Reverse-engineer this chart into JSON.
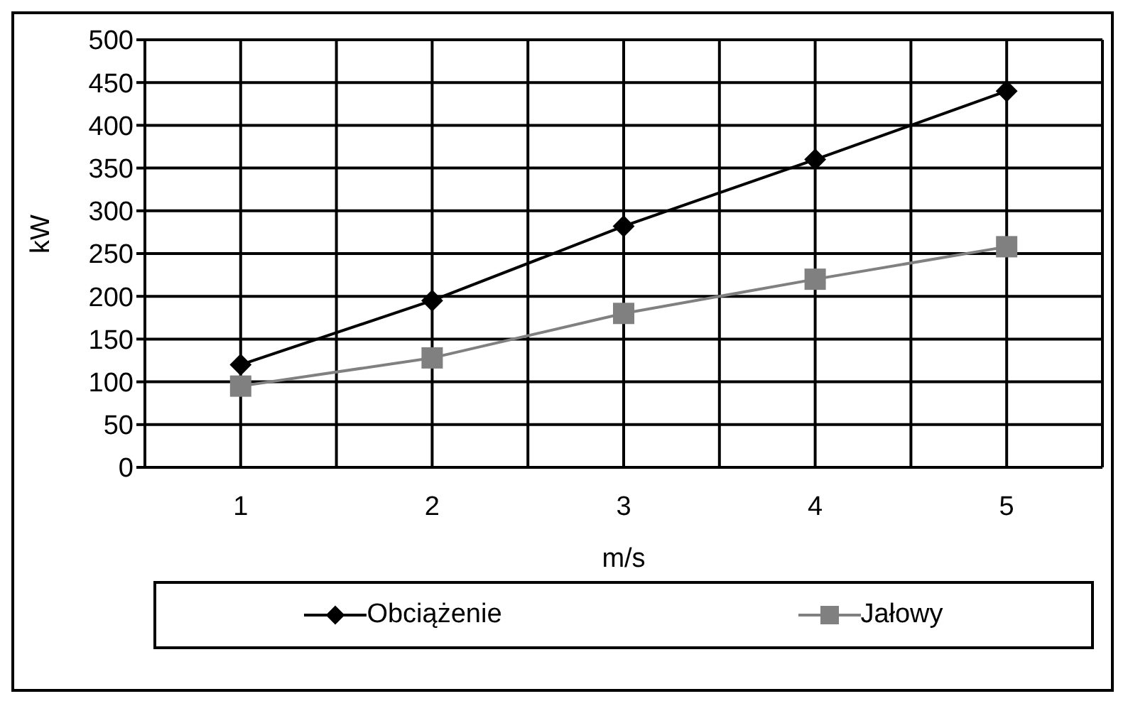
{
  "chart_data": {
    "type": "line",
    "xlabel": "m/s",
    "ylabel": "kW",
    "categories": [
      "1",
      "2",
      "3",
      "4",
      "5"
    ],
    "series": [
      {
        "name": "Obciążenie",
        "color": "#000000",
        "marker": "diamond",
        "values": [
          120,
          195,
          282,
          360,
          440
        ]
      },
      {
        "name": "Jałowy",
        "color": "#808080",
        "marker": "square",
        "values": [
          95,
          128,
          180,
          220,
          258
        ]
      }
    ],
    "ylim": [
      0,
      500
    ],
    "yticks": [
      0,
      50,
      100,
      150,
      200,
      250,
      300,
      350,
      400,
      450,
      500
    ],
    "grid": true,
    "legend": "bottom"
  }
}
